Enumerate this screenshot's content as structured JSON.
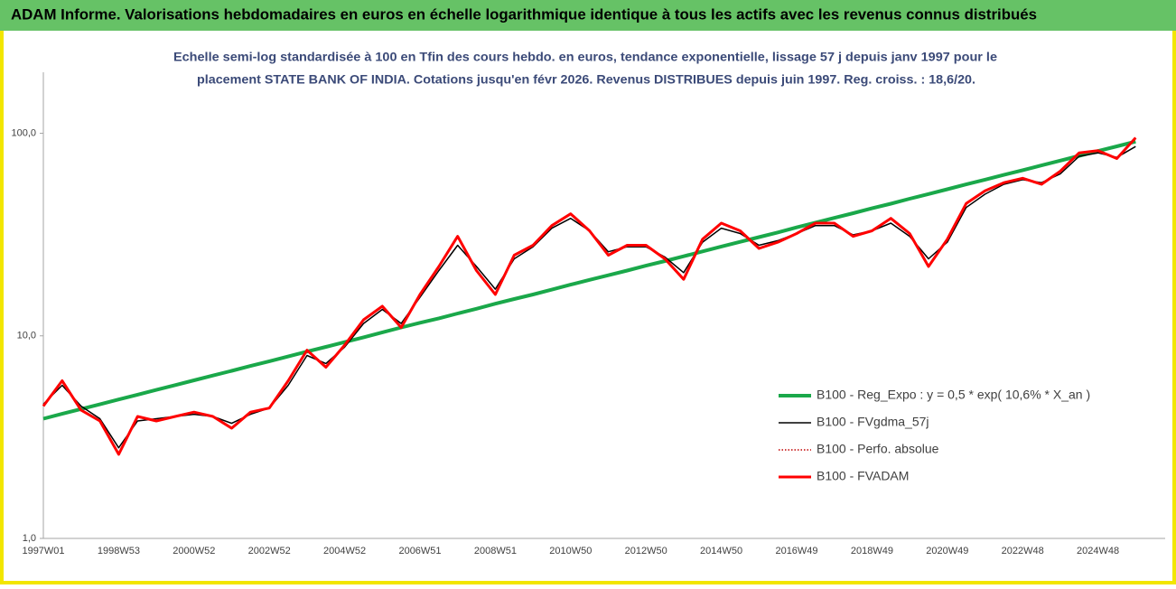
{
  "chart_data": {
    "type": "line",
    "title": "ADAM Informe. Valorisations hebdomadaires en euros en échelle logarithmique identique à tous les actifs avec les revenus connus distribués",
    "subtitle": [
      "Echelle semi-log standardisée à 100 en Tfin des cours hebdo. en euros, tendance exponentielle, lissage 57 j depuis janv 1997 pour le",
      "placement STATE  BANK OF INDIA. Cotations jusqu'en févr 2026. Revenus DISTRIBUES depuis juin 1997. Reg. croiss. : 18,6/20."
    ],
    "categories": [
      "1997W01",
      null,
      null,
      null,
      "1998W53",
      null,
      null,
      null,
      "2000W52",
      null,
      null,
      null,
      "2002W52",
      null,
      null,
      null,
      "2004W52",
      null,
      null,
      null,
      "2006W51",
      null,
      null,
      null,
      "2008W51",
      null,
      null,
      null,
      "2010W50",
      null,
      null,
      null,
      "2012W50",
      null,
      null,
      null,
      "2014W50",
      null,
      null,
      null,
      "2016W49",
      null,
      null,
      null,
      "2018W49",
      null,
      null,
      null,
      "2020W49",
      null,
      null,
      null,
      "2022W48",
      null,
      null,
      null,
      "2024W48",
      null,
      null
    ],
    "log_scale": true,
    "ylim": [
      1,
      200
    ],
    "yticks": [
      {
        "value": 1,
        "label": "1,0"
      },
      {
        "value": 10,
        "label": "10,0"
      },
      {
        "value": 100,
        "label": "100,0"
      }
    ],
    "series": [
      {
        "name": "B100 - Reg_Expo : y = 0,5 * exp( 10,6% *  X_an )",
        "color": "#1aa84a",
        "style": "solid",
        "width": 4,
        "values": [
          3.9,
          4.12,
          4.35,
          4.59,
          4.85,
          5.12,
          5.41,
          5.71,
          6.03,
          6.37,
          6.72,
          7.1,
          7.49,
          7.91,
          8.36,
          8.82,
          9.31,
          9.83,
          10.4,
          11.0,
          11.6,
          12.2,
          12.9,
          13.6,
          14.4,
          15.2,
          16.0,
          16.9,
          17.9,
          18.9,
          19.9,
          21.0,
          22.2,
          23.4,
          24.7,
          26.1,
          27.6,
          29.1,
          30.7,
          32.4,
          34.3,
          36.2,
          38.2,
          40.3,
          42.6,
          44.9,
          47.5,
          50.1,
          52.9,
          55.9,
          59.0,
          62.3,
          65.7,
          69.4,
          73.3,
          77.4,
          81.7,
          86.2,
          91.0
        ]
      },
      {
        "name": "B100 - FVgdma_57j",
        "color": "#000000",
        "style": "solid",
        "width": 1.5,
        "values": [
          4.6,
          5.7,
          4.5,
          3.9,
          2.8,
          3.8,
          3.9,
          4.0,
          4.1,
          4.0,
          3.7,
          4.1,
          4.4,
          5.7,
          8.0,
          7.3,
          8.8,
          11.5,
          13.5,
          11.5,
          15.5,
          21.0,
          28.0,
          22.0,
          17.0,
          24.0,
          27.5,
          34.0,
          38.0,
          33.0,
          26.0,
          27.5,
          27.5,
          24.5,
          20.5,
          29.0,
          34.0,
          32.0,
          28.0,
          29.5,
          32.0,
          35.0,
          35.0,
          31.5,
          33.0,
          36.0,
          31.0,
          24.0,
          29.0,
          43.0,
          50.0,
          56.0,
          59.0,
          57.0,
          63.0,
          77.0,
          80.0,
          76.0,
          86.0
        ]
      },
      {
        "name": "B100 - Perfo. absolue",
        "color": "#c00000",
        "style": "dotted",
        "width": 1.5,
        "values": [
          4.5,
          6.0,
          4.3,
          3.8,
          2.6,
          4.0,
          3.8,
          4.0,
          4.2,
          4.0,
          3.5,
          4.2,
          4.4,
          6.0,
          8.5,
          7.0,
          9.0,
          12.0,
          14.0,
          11.0,
          16.0,
          22.0,
          31.0,
          21.0,
          16.0,
          25.0,
          28.0,
          35.0,
          40.0,
          33.0,
          25.0,
          28.0,
          28.0,
          24.0,
          19.0,
          30.0,
          36.0,
          33.0,
          27.0,
          29.0,
          32.0,
          36.0,
          36.0,
          31.0,
          33.0,
          38.0,
          32.0,
          22.0,
          30.0,
          45.0,
          52.0,
          57.0,
          60.0,
          56.0,
          65.0,
          80.0,
          82.0,
          75.0,
          95.0
        ]
      },
      {
        "name": "B100 - FVADAM",
        "color": "#ff0000",
        "style": "solid",
        "width": 3,
        "values": [
          4.5,
          6.0,
          4.3,
          3.8,
          2.6,
          4.0,
          3.8,
          4.0,
          4.2,
          4.0,
          3.5,
          4.2,
          4.4,
          6.0,
          8.5,
          7.0,
          9.0,
          12.0,
          14.0,
          11.0,
          16.0,
          22.0,
          31.0,
          21.0,
          16.0,
          25.0,
          28.0,
          35.0,
          40.0,
          33.0,
          25.0,
          28.0,
          28.0,
          24.0,
          19.0,
          30.0,
          36.0,
          33.0,
          27.0,
          29.0,
          32.0,
          36.0,
          36.0,
          31.0,
          33.0,
          38.0,
          32.0,
          22.0,
          30.0,
          45.0,
          52.0,
          57.0,
          60.0,
          56.0,
          65.0,
          80.0,
          82.0,
          75.0,
          95.0
        ]
      }
    ],
    "legend": "inside-right"
  }
}
